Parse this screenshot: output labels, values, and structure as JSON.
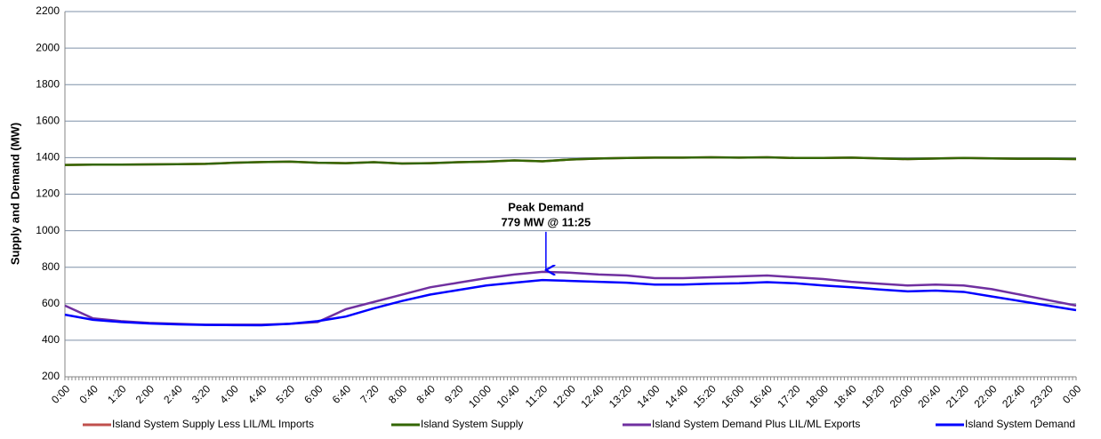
{
  "chart_data": {
    "type": "line",
    "y_label": "Supply and Demand (MW)",
    "annotations": [
      "Peak Demand",
      "779 MW @ 11:25"
    ],
    "categories": [
      "0:00",
      "0:40",
      "1:20",
      "2:00",
      "2:40",
      "3:20",
      "4:00",
      "4:40",
      "5:20",
      "6:00",
      "6:40",
      "7:20",
      "8:00",
      "8:40",
      "9:20",
      "10:00",
      "10:40",
      "11:20",
      "12:00",
      "12:40",
      "13:20",
      "14:00",
      "14:40",
      "15:20",
      "16:00",
      "16:40",
      "17:20",
      "18:00",
      "18:40",
      "19:20",
      "20:00",
      "20:40",
      "21:20",
      "22:00",
      "22:40",
      "23:20",
      "0:00"
    ],
    "ylim": [
      200,
      2200
    ],
    "yticks": [
      200,
      400,
      600,
      800,
      1000,
      1200,
      1400,
      1600,
      1800,
      2000,
      2200
    ],
    "grid": true,
    "series": [
      {
        "name": "Island System Supply Less LIL/ML Imports",
        "color": "#c0504d",
        "values": [
          1360,
          1362,
          1362,
          1363,
          1364,
          1366,
          1372,
          1376,
          1378,
          1372,
          1370,
          1375,
          1368,
          1370,
          1375,
          1378,
          1385,
          1380,
          1390,
          1395,
          1398,
          1400,
          1400,
          1402,
          1400,
          1402,
          1398,
          1398,
          1400,
          1396,
          1392,
          1395,
          1398,
          1396,
          1394,
          1394,
          1392
        ]
      },
      {
        "name": "Island System Supply",
        "color": "#336600",
        "values": [
          1360,
          1362,
          1362,
          1363,
          1364,
          1366,
          1372,
          1376,
          1378,
          1372,
          1370,
          1375,
          1368,
          1370,
          1375,
          1378,
          1385,
          1380,
          1390,
          1395,
          1398,
          1400,
          1400,
          1402,
          1400,
          1402,
          1398,
          1398,
          1400,
          1396,
          1392,
          1395,
          1398,
          1396,
          1394,
          1394,
          1392
        ]
      },
      {
        "name": "Island System Demand Plus LIL/ML Exports",
        "color": "#7030a0",
        "values": [
          590,
          520,
          505,
          495,
          490,
          485,
          485,
          485,
          490,
          500,
          570,
          610,
          650,
          690,
          715,
          740,
          760,
          775,
          770,
          760,
          755,
          740,
          740,
          745,
          750,
          755,
          745,
          735,
          720,
          710,
          700,
          705,
          700,
          680,
          650,
          620,
          590
        ]
      },
      {
        "name": "Island System Demand",
        "color": "#0000ff",
        "values": [
          540,
          512,
          500,
          492,
          487,
          484,
          483,
          482,
          490,
          505,
          530,
          575,
          615,
          650,
          675,
          700,
          715,
          730,
          725,
          720,
          715,
          705,
          705,
          710,
          712,
          718,
          712,
          700,
          690,
          678,
          668,
          672,
          665,
          640,
          615,
          590,
          565
        ]
      }
    ]
  }
}
